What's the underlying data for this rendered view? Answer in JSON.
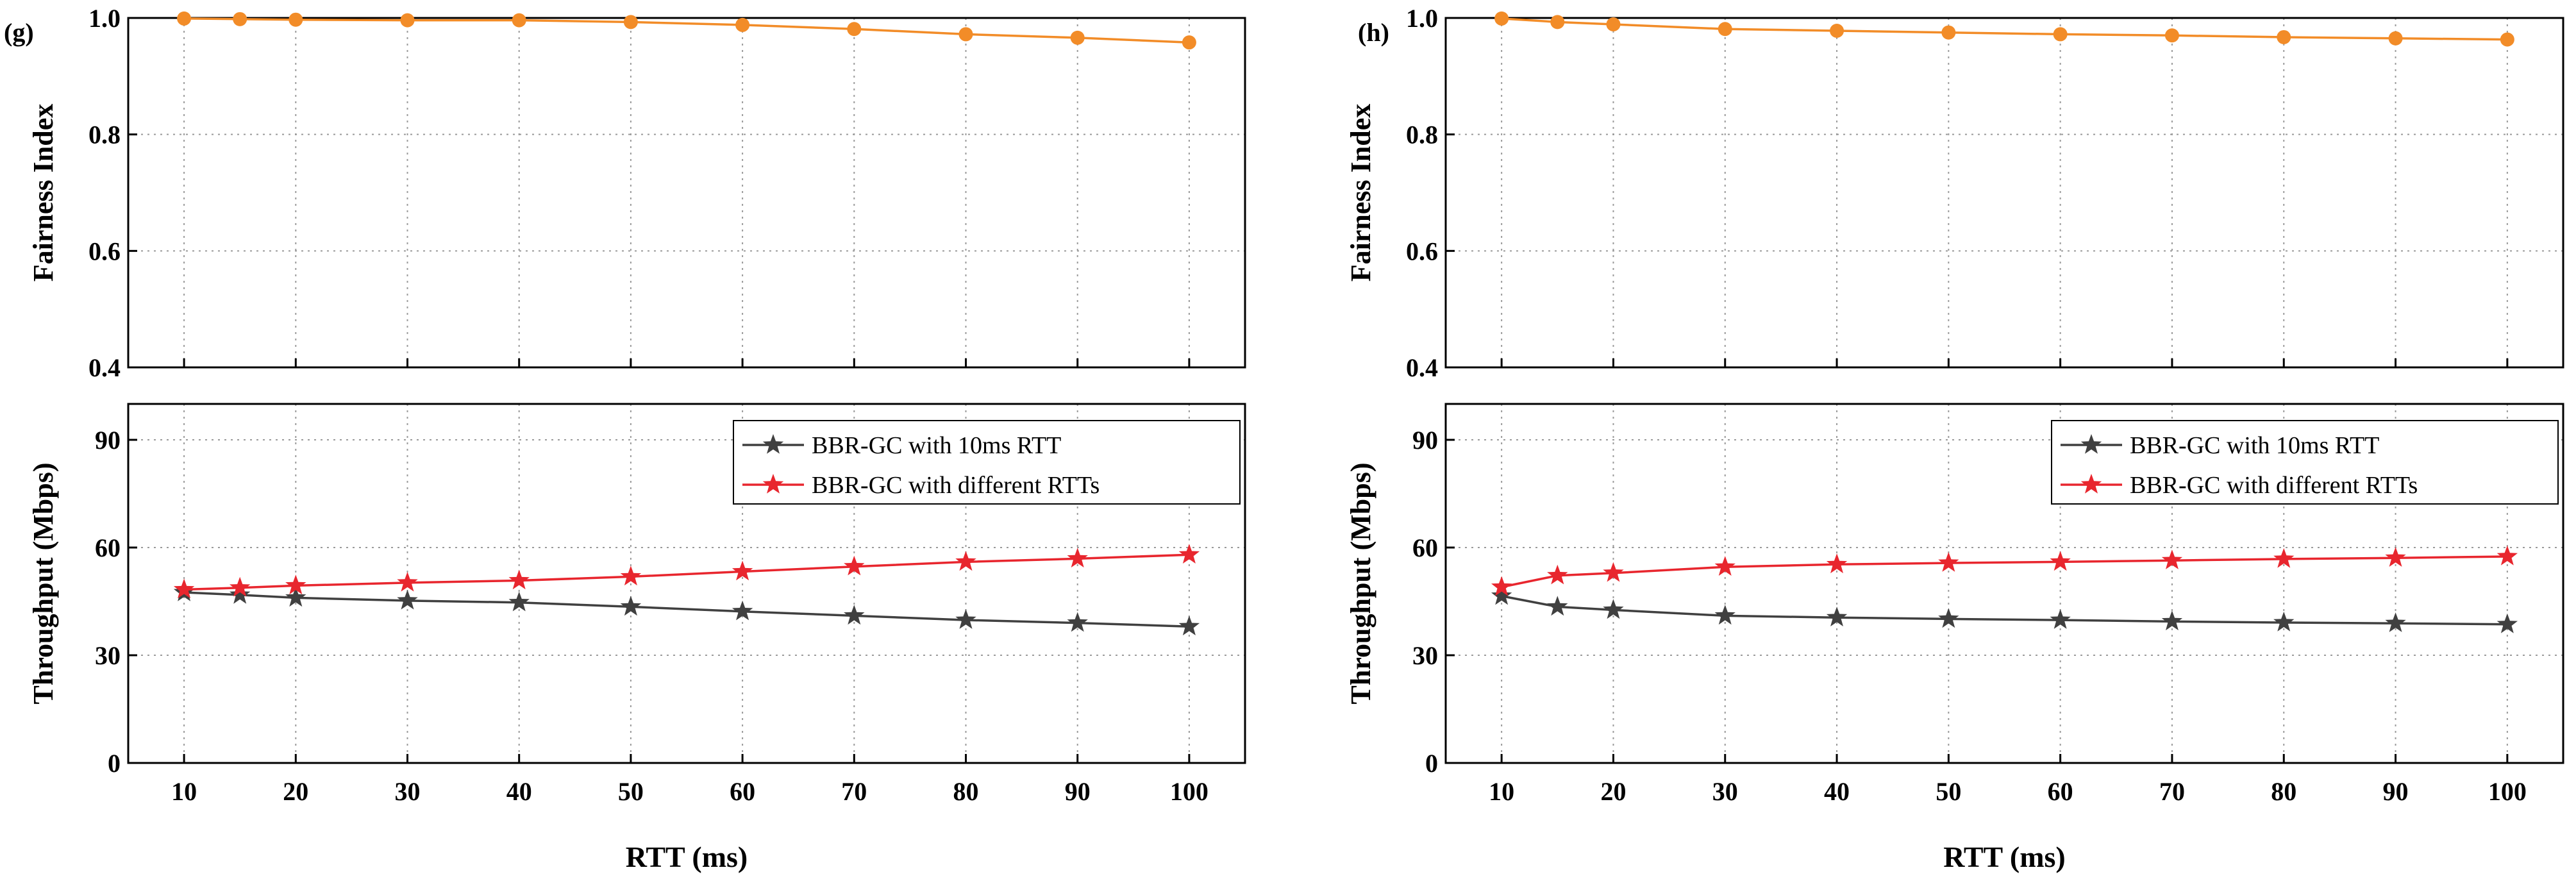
{
  "chart_data": [
    {
      "panel_label": "(g)",
      "x": [
        10,
        15,
        20,
        30,
        40,
        50,
        60,
        70,
        80,
        90,
        100
      ],
      "xticks": [
        10,
        20,
        30,
        40,
        50,
        60,
        70,
        80,
        90,
        100
      ],
      "xlabel": "RTT (ms)",
      "fairness": {
        "type": "line",
        "ylabel": "Fairness Index",
        "ylim": [
          0.4,
          1.0
        ],
        "yticks": [
          "0.4",
          "0.6",
          "0.8",
          "1.0"
        ],
        "color": "#f28c28",
        "marker": "circle",
        "values": [
          0.999,
          0.998,
          0.997,
          0.996,
          0.996,
          0.993,
          0.988,
          0.981,
          0.972,
          0.966,
          0.958
        ]
      },
      "throughput": {
        "type": "line",
        "ylabel": "Throughput (Mbps)",
        "ylim": [
          0,
          100
        ],
        "yticks": [
          "0",
          "30",
          "60",
          "90"
        ],
        "legend_position": "top-right",
        "series": [
          {
            "name": "BBR-GC with 10ms RTT",
            "color": "#404040",
            "marker": "star",
            "values": [
              47.5,
              46.8,
              46.0,
              45.2,
              44.7,
              43.5,
              42.2,
              41.0,
              39.8,
              39.0,
              38.0
            ]
          },
          {
            "name": "BBR-GC with different RTTs",
            "color": "#e8262e",
            "marker": "star",
            "values": [
              48.3,
              48.8,
              49.4,
              50.2,
              50.8,
              51.9,
              53.3,
              54.7,
              56.0,
              56.9,
              58.0
            ]
          }
        ]
      }
    },
    {
      "panel_label": "(h)",
      "x": [
        10,
        15,
        20,
        30,
        40,
        50,
        60,
        70,
        80,
        90,
        100
      ],
      "xticks": [
        10,
        20,
        30,
        40,
        50,
        60,
        70,
        80,
        90,
        100
      ],
      "xlabel": "RTT (ms)",
      "fairness": {
        "type": "line",
        "ylabel": "Fairness Index",
        "ylim": [
          0.4,
          1.0
        ],
        "yticks": [
          "0.4",
          "0.6",
          "0.8",
          "1.0"
        ],
        "color": "#f28c28",
        "marker": "circle",
        "values": [
          0.999,
          0.993,
          0.989,
          0.981,
          0.978,
          0.975,
          0.972,
          0.97,
          0.967,
          0.965,
          0.963
        ]
      },
      "throughput": {
        "type": "line",
        "ylabel": "Throughput (Mbps)",
        "ylim": [
          0,
          100
        ],
        "yticks": [
          "0",
          "30",
          "60",
          "90"
        ],
        "legend_position": "top-right",
        "series": [
          {
            "name": "BBR-GC with 10ms RTT",
            "color": "#404040",
            "marker": "star",
            "values": [
              46.5,
              43.5,
              42.6,
              41.0,
              40.5,
              40.1,
              39.8,
              39.4,
              39.1,
              38.9,
              38.6
            ]
          },
          {
            "name": "BBR-GC with different RTTs",
            "color": "#e8262e",
            "marker": "star",
            "values": [
              49.0,
              52.2,
              52.9,
              54.6,
              55.3,
              55.7,
              56.0,
              56.4,
              56.8,
              57.1,
              57.5
            ]
          }
        ]
      }
    }
  ]
}
